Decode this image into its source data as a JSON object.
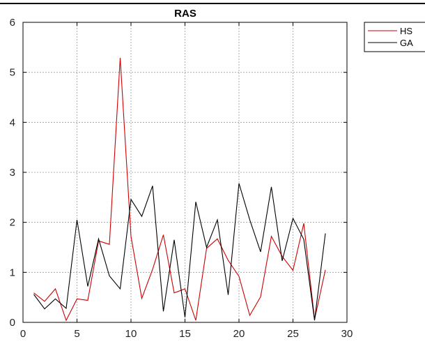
{
  "chart_data": {
    "type": "line",
    "title": "RAS",
    "xlabel": "",
    "ylabel": "",
    "xlim": [
      0,
      30
    ],
    "ylim": [
      0,
      6
    ],
    "xticks": [
      0,
      5,
      10,
      15,
      20,
      25,
      30
    ],
    "yticks": [
      0,
      1,
      2,
      3,
      4,
      5,
      6
    ],
    "grid": true,
    "legend_placement": "outside-top-right",
    "series": [
      {
        "name": "HS",
        "color": "#cc0000",
        "x": [
          1,
          2,
          3,
          4,
          5,
          6,
          7,
          8,
          9,
          10,
          11,
          12,
          13,
          14,
          15,
          16,
          17,
          18,
          19,
          20,
          21,
          22,
          23,
          24,
          25,
          26,
          27,
          28
        ],
        "y": [
          0.59,
          0.42,
          0.67,
          0.04,
          0.47,
          0.44,
          1.63,
          1.56,
          5.29,
          1.72,
          0.48,
          1.06,
          1.75,
          0.59,
          0.67,
          0.04,
          1.48,
          1.67,
          1.24,
          0.92,
          0.14,
          0.51,
          1.72,
          1.32,
          1.04,
          1.98,
          0.06,
          1.05
        ]
      },
      {
        "name": "GA",
        "color": "#000000",
        "x": [
          1,
          2,
          3,
          4,
          5,
          6,
          7,
          8,
          9,
          10,
          11,
          12,
          13,
          14,
          15,
          16,
          17,
          18,
          19,
          20,
          21,
          22,
          23,
          24,
          25,
          26,
          27,
          28
        ],
        "y": [
          0.56,
          0.27,
          0.47,
          0.28,
          2.05,
          0.72,
          1.67,
          0.93,
          0.67,
          2.46,
          2.12,
          2.73,
          0.22,
          1.65,
          0.1,
          2.41,
          1.5,
          2.05,
          0.55,
          2.78,
          2.05,
          1.41,
          2.71,
          1.23,
          2.08,
          1.66,
          0.04,
          1.78
        ]
      }
    ]
  }
}
